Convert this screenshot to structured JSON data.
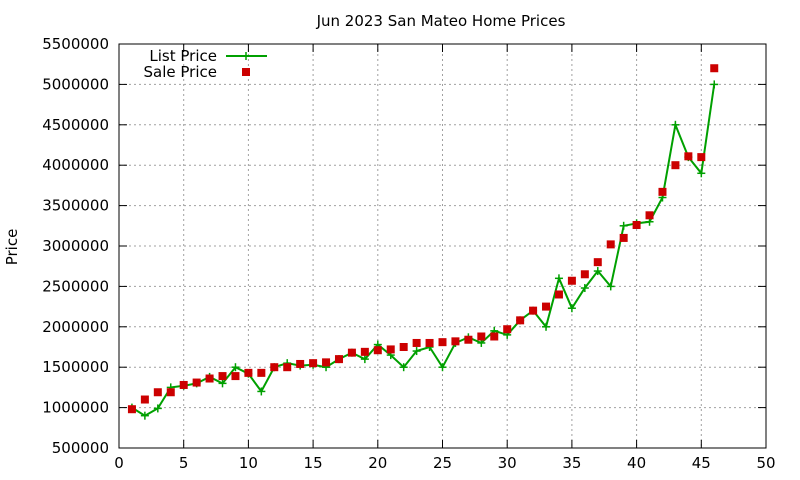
{
  "chart_data": {
    "type": "scatter",
    "title": "Jun 2023 San Mateo Home Prices",
    "ylabel": "Price",
    "xlabel": "",
    "xlim": [
      0,
      50
    ],
    "ylim": [
      500000,
      5500000
    ],
    "x_ticks": [
      0,
      5,
      10,
      15,
      20,
      25,
      30,
      35,
      40,
      45,
      50
    ],
    "y_ticks": [
      500000,
      1000000,
      1500000,
      2000000,
      2500000,
      3000000,
      3500000,
      4000000,
      4500000,
      5000000,
      5500000
    ],
    "grid": true,
    "legend_position": "top-left",
    "series": [
      {
        "name": "List Price",
        "style": "line+cross",
        "color": "#00a000",
        "x": [
          1,
          2,
          3,
          4,
          5,
          6,
          7,
          8,
          9,
          10,
          11,
          12,
          13,
          14,
          15,
          16,
          17,
          18,
          19,
          20,
          21,
          22,
          23,
          24,
          25,
          26,
          27,
          28,
          29,
          30,
          31,
          32,
          33,
          34,
          35,
          36,
          37,
          38,
          39,
          40,
          41,
          42,
          43,
          44,
          45,
          46
        ],
        "values": [
          1000000,
          900000,
          990000,
          1250000,
          1270000,
          1300000,
          1380000,
          1300000,
          1500000,
          1420000,
          1200000,
          1500000,
          1550000,
          1520000,
          1530000,
          1500000,
          1600000,
          1680000,
          1600000,
          1780000,
          1650000,
          1500000,
          1700000,
          1750000,
          1500000,
          1800000,
          1870000,
          1800000,
          1950000,
          1900000,
          2080000,
          2200000,
          2000000,
          2600000,
          2230000,
          2480000,
          2690000,
          2500000,
          3250000,
          3280000,
          3300000,
          3600000,
          4500000,
          4100000,
          3900000,
          5000000
        ]
      },
      {
        "name": "Sale Price",
        "style": "square",
        "color": "#cc0000",
        "x": [
          1,
          2,
          3,
          4,
          5,
          6,
          7,
          8,
          9,
          10,
          11,
          12,
          13,
          14,
          15,
          16,
          17,
          18,
          19,
          20,
          21,
          22,
          23,
          24,
          25,
          26,
          27,
          28,
          29,
          30,
          31,
          32,
          33,
          34,
          35,
          36,
          37,
          38,
          39,
          40,
          41,
          42,
          43,
          44,
          45,
          46
        ],
        "values": [
          980000,
          1100000,
          1190000,
          1190000,
          1280000,
          1310000,
          1360000,
          1390000,
          1390000,
          1430000,
          1430000,
          1500000,
          1500000,
          1540000,
          1550000,
          1560000,
          1600000,
          1680000,
          1690000,
          1710000,
          1720000,
          1750000,
          1800000,
          1800000,
          1810000,
          1820000,
          1840000,
          1880000,
          1880000,
          1970000,
          2080000,
          2200000,
          2250000,
          2400000,
          2570000,
          2650000,
          2800000,
          3020000,
          3100000,
          3260000,
          3380000,
          3670000,
          4000000,
          4110000,
          4100000,
          5200000
        ]
      }
    ]
  }
}
